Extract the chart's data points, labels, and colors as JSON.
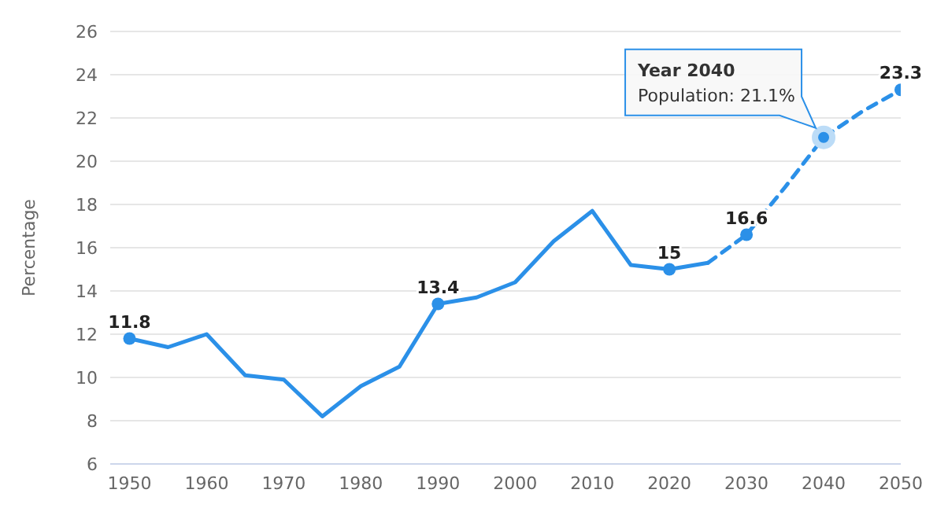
{
  "chart_data": {
    "type": "line",
    "ylabel": "Percentage",
    "xlim": [
      1947.5,
      2050
    ],
    "xticks": [
      1950,
      1960,
      1970,
      1980,
      1990,
      2000,
      2010,
      2020,
      2030,
      2040,
      2050
    ],
    "ylim": [
      6,
      26
    ],
    "yticks": [
      6,
      8,
      10,
      12,
      14,
      16,
      18,
      20,
      22,
      24,
      26
    ],
    "grid": "y",
    "series": [
      {
        "color": "#2b90e8",
        "line_style": "solid",
        "x": [
          1950,
          1955,
          1960,
          1965,
          1970,
          1975,
          1980,
          1985,
          1990,
          1995,
          2000,
          2005,
          2010,
          2015,
          2020,
          2025
        ],
        "values": [
          11.8,
          11.4,
          12.0,
          10.1,
          9.9,
          8.2,
          9.6,
          10.5,
          13.4,
          13.7,
          14.4,
          16.3,
          17.7,
          15.2,
          15,
          15.3
        ],
        "value_labels": [
          "11.8",
          null,
          null,
          null,
          null,
          null,
          null,
          null,
          "13.4",
          null,
          null,
          null,
          null,
          null,
          "15",
          null
        ]
      },
      {
        "color": "#2b90e8",
        "line_style": "dashed",
        "x": [
          2025,
          2030,
          2035,
          2040,
          2045,
          2050
        ],
        "values": [
          15.3,
          16.6,
          18.8,
          21.1,
          22.3,
          23.3
        ],
        "value_labels": [
          null,
          "16.6",
          null,
          null,
          null,
          "23.3"
        ]
      }
    ],
    "annotations": [
      {
        "text": "Year 2040\nPopulation: 21.1%",
        "x": 2040,
        "y": 21.1
      }
    ]
  }
}
